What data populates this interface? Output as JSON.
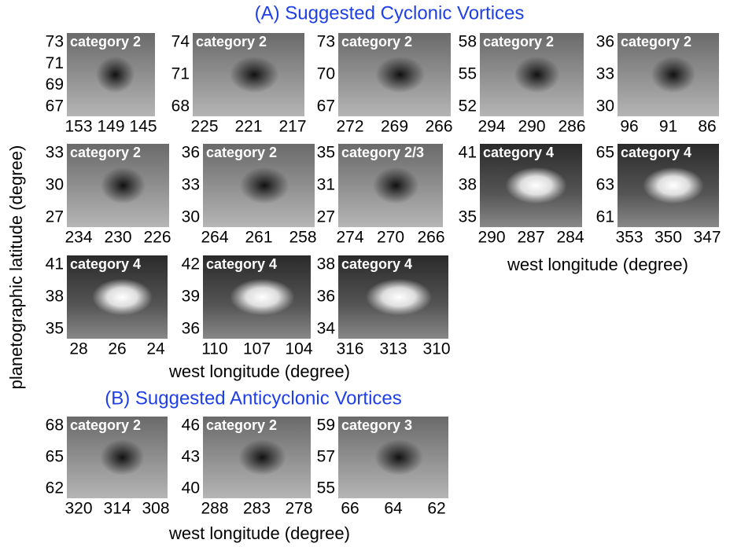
{
  "sections": [
    {
      "title": "(A) Suggested Cyclonic Vortices",
      "panels": [
        {
          "label": "category 2",
          "yticks": [
            73,
            71,
            69,
            67
          ],
          "xticks": [
            153,
            149,
            145
          ]
        },
        {
          "label": "category 2",
          "yticks": [
            74,
            71,
            68
          ],
          "xticks": [
            225,
            221,
            217
          ]
        },
        {
          "label": "category 2",
          "yticks": [
            73,
            70,
            67
          ],
          "xticks": [
            272,
            269,
            266
          ]
        },
        {
          "label": "category 2",
          "yticks": [
            58,
            55,
            52
          ],
          "xticks": [
            294,
            290,
            286
          ]
        },
        {
          "label": "category 2",
          "yticks": [
            36,
            33,
            30
          ],
          "xticks": [
            96,
            91,
            86
          ]
        },
        {
          "label": "category 2",
          "yticks": [
            33,
            30,
            27
          ],
          "xticks": [
            234,
            230,
            226
          ]
        },
        {
          "label": "category 2",
          "yticks": [
            36,
            33,
            30
          ],
          "xticks": [
            264,
            261,
            258
          ]
        },
        {
          "label": "category 2/3",
          "yticks": [
            35,
            31,
            27
          ],
          "xticks": [
            274,
            270,
            266
          ]
        },
        {
          "label": "category 4",
          "yticks": [
            41,
            38,
            35
          ],
          "xticks": [
            290,
            287,
            284
          ]
        },
        {
          "label": "category 4",
          "yticks": [
            65,
            63,
            61
          ],
          "xticks": [
            353,
            350,
            347
          ]
        },
        {
          "label": "category 4",
          "yticks": [
            41,
            38,
            35
          ],
          "xticks": [
            28,
            26,
            24
          ]
        },
        {
          "label": "category 4",
          "yticks": [
            42,
            39,
            36
          ],
          "xticks": [
            110,
            107,
            104
          ]
        },
        {
          "label": "category 4",
          "yticks": [
            38,
            36,
            34
          ],
          "xticks": [
            316,
            313,
            310
          ]
        }
      ]
    },
    {
      "title": "(B) Suggested Anticyclonic Vortices",
      "panels": [
        {
          "label": "category 2",
          "yticks": [
            68,
            65,
            62
          ],
          "xticks": [
            320,
            314,
            308
          ]
        },
        {
          "label": "category 2",
          "yticks": [
            46,
            43,
            40
          ],
          "xticks": [
            288,
            283,
            278
          ]
        },
        {
          "label": "category 3",
          "yticks": [
            59,
            57,
            55
          ],
          "xticks": [
            66,
            64,
            62
          ]
        }
      ]
    }
  ],
  "axis_labels": {
    "y": "planetographic latitude (degree)",
    "x": [
      "west longitude (degree)",
      "west longitude (degree)",
      "west longitude (degree)"
    ]
  }
}
